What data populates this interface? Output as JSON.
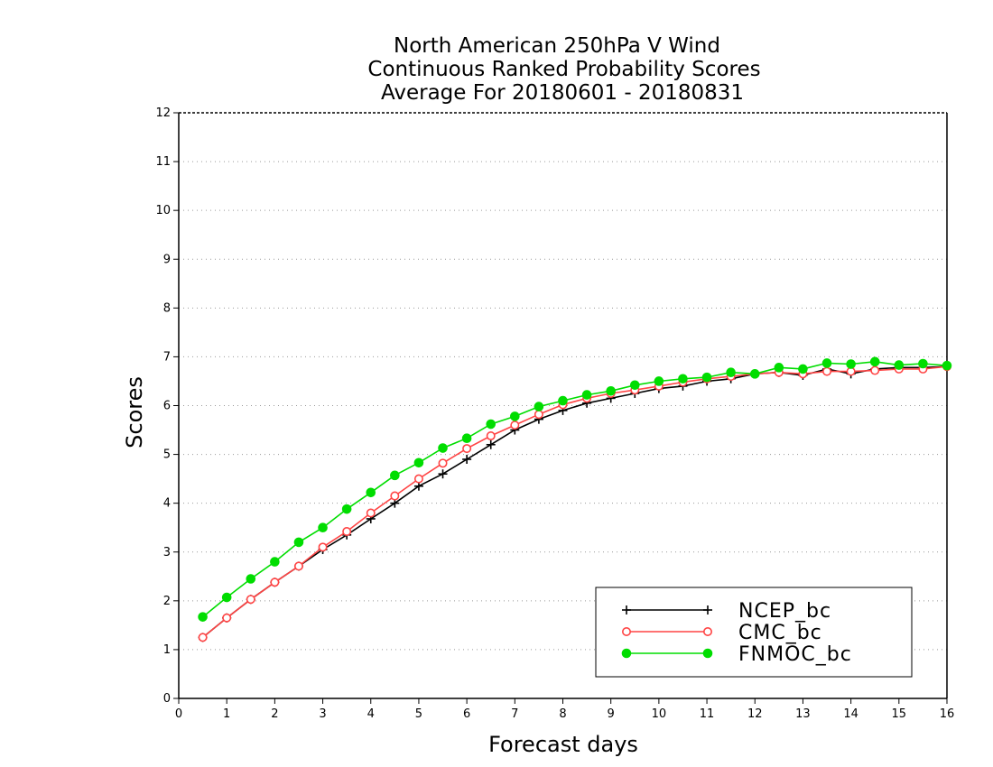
{
  "chart_data": {
    "type": "line",
    "title": [
      "North American 250hPa V Wind",
      "Continuous Ranked Probability Scores",
      "Average For 20180601 - 20180831"
    ],
    "xlabel": "Forecast days",
    "ylabel": "Scores",
    "xlim": [
      0,
      16
    ],
    "ylim": [
      0,
      12
    ],
    "xticks": [
      0,
      1,
      2,
      3,
      4,
      5,
      6,
      7,
      8,
      9,
      10,
      11,
      12,
      13,
      14,
      15,
      16
    ],
    "yticks": [
      0,
      1,
      2,
      3,
      4,
      5,
      6,
      7,
      8,
      9,
      10,
      11,
      12
    ],
    "grid": true,
    "legend_position": "bottom-right",
    "x": [
      0.5,
      1.0,
      1.5,
      2.0,
      2.5,
      3.0,
      3.5,
      4.0,
      4.5,
      5.0,
      5.5,
      6.0,
      6.5,
      7.0,
      7.5,
      8.0,
      8.5,
      9.0,
      9.5,
      10.0,
      10.5,
      11.0,
      11.5,
      12.0,
      12.5,
      13.0,
      13.5,
      14.0,
      14.5,
      15.0,
      15.5,
      16.0
    ],
    "series": [
      {
        "name": "NCEP_bc",
        "color": "#000000",
        "marker": "plus",
        "values": [
          1.25,
          1.65,
          2.03,
          2.38,
          2.71,
          3.05,
          3.35,
          3.68,
          4.0,
          4.35,
          4.6,
          4.9,
          5.2,
          5.5,
          5.72,
          5.9,
          6.05,
          6.15,
          6.25,
          6.35,
          6.4,
          6.5,
          6.55,
          6.65,
          6.68,
          6.62,
          6.75,
          6.65,
          6.75,
          6.78,
          6.78,
          6.8
        ]
      },
      {
        "name": "CMC_bc",
        "color": "#ff4444",
        "marker": "open-circle",
        "values": [
          1.25,
          1.65,
          2.03,
          2.38,
          2.71,
          3.1,
          3.42,
          3.8,
          4.15,
          4.5,
          4.82,
          5.12,
          5.38,
          5.6,
          5.82,
          6.02,
          6.15,
          6.25,
          6.32,
          6.4,
          6.48,
          6.55,
          6.6,
          6.65,
          6.68,
          6.65,
          6.7,
          6.7,
          6.72,
          6.75,
          6.75,
          6.8
        ]
      },
      {
        "name": "FNMOC_bc",
        "color": "#00dd00",
        "marker": "filled-circle",
        "values": [
          1.67,
          2.07,
          2.45,
          2.8,
          3.2,
          3.5,
          3.88,
          4.22,
          4.57,
          4.83,
          5.13,
          5.33,
          5.62,
          5.78,
          5.98,
          6.1,
          6.22,
          6.3,
          6.42,
          6.5,
          6.55,
          6.58,
          6.68,
          6.65,
          6.78,
          6.75,
          6.87,
          6.85,
          6.9,
          6.83,
          6.86,
          6.82
        ]
      }
    ]
  }
}
